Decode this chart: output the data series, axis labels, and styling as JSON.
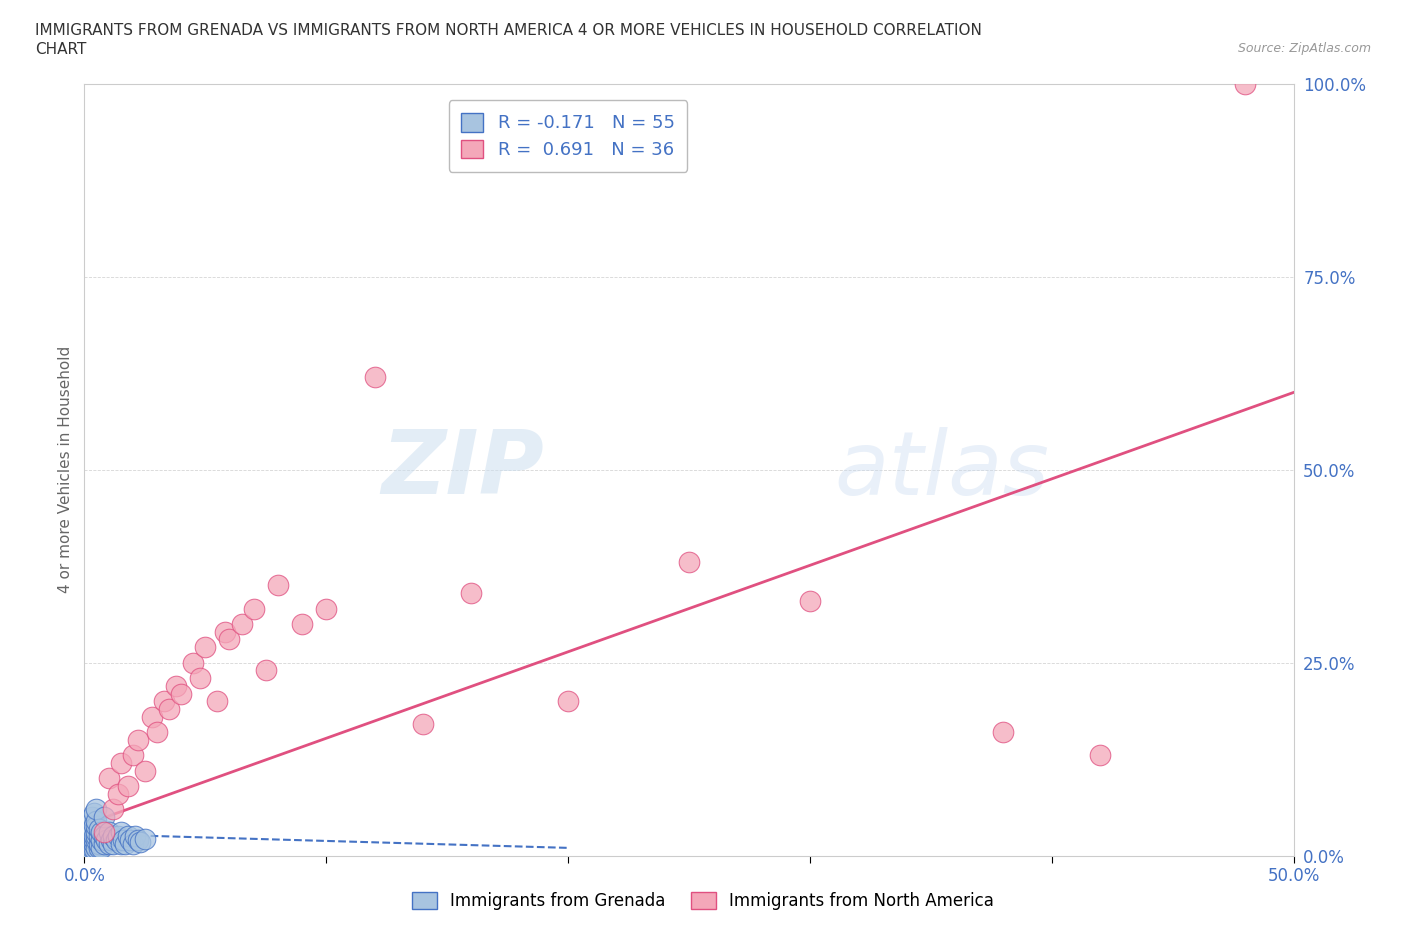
{
  "title_line1": "IMMIGRANTS FROM GRENADA VS IMMIGRANTS FROM NORTH AMERICA 4 OR MORE VEHICLES IN HOUSEHOLD CORRELATION",
  "title_line2": "CHART",
  "source": "Source: ZipAtlas.com",
  "ylabel": "4 or more Vehicles in Household",
  "xlim": [
    0.0,
    0.5
  ],
  "ylim": [
    0.0,
    1.0
  ],
  "xticks": [
    0.0,
    0.1,
    0.2,
    0.3,
    0.4,
    0.5
  ],
  "xticklabels": [
    "0.0%",
    "",
    "",
    "",
    "",
    "50.0%"
  ],
  "yticks": [
    0.0,
    0.25,
    0.5,
    0.75,
    1.0
  ],
  "yticklabels": [
    "0.0%",
    "25.0%",
    "50.0%",
    "75.0%",
    "100.0%"
  ],
  "blue_color": "#a8c4e0",
  "blue_edge_color": "#4472c4",
  "pink_color": "#f4a7b9",
  "pink_edge_color": "#e05080",
  "blue_R": -0.171,
  "blue_N": 55,
  "pink_R": 0.691,
  "pink_N": 36,
  "legend_label_blue": "Immigrants from Grenada",
  "legend_label_pink": "Immigrants from North America",
  "watermark_zip": "ZIP",
  "watermark_atlas": "atlas",
  "tick_color": "#4472c4",
  "grid_color": "#cccccc",
  "spine_color": "#cccccc",
  "blue_scatter_x": [
    0.001,
    0.001,
    0.002,
    0.002,
    0.002,
    0.002,
    0.003,
    0.003,
    0.003,
    0.003,
    0.003,
    0.003,
    0.003,
    0.004,
    0.004,
    0.004,
    0.004,
    0.004,
    0.004,
    0.005,
    0.005,
    0.005,
    0.005,
    0.005,
    0.005,
    0.005,
    0.006,
    0.006,
    0.006,
    0.006,
    0.007,
    0.007,
    0.007,
    0.008,
    0.008,
    0.008,
    0.009,
    0.01,
    0.01,
    0.011,
    0.012,
    0.012,
    0.013,
    0.014,
    0.015,
    0.015,
    0.016,
    0.017,
    0.018,
    0.019,
    0.02,
    0.021,
    0.022,
    0.023,
    0.025
  ],
  "blue_scatter_y": [
    0.01,
    0.03,
    0.005,
    0.015,
    0.02,
    0.04,
    0.01,
    0.015,
    0.02,
    0.025,
    0.03,
    0.035,
    0.05,
    0.008,
    0.015,
    0.02,
    0.025,
    0.04,
    0.055,
    0.01,
    0.02,
    0.025,
    0.03,
    0.038,
    0.045,
    0.06,
    0.01,
    0.015,
    0.025,
    0.035,
    0.01,
    0.02,
    0.03,
    0.015,
    0.025,
    0.05,
    0.02,
    0.015,
    0.03,
    0.02,
    0.015,
    0.025,
    0.02,
    0.025,
    0.015,
    0.03,
    0.02,
    0.015,
    0.025,
    0.02,
    0.015,
    0.025,
    0.02,
    0.018,
    0.022
  ],
  "pink_scatter_x": [
    0.008,
    0.01,
    0.012,
    0.014,
    0.015,
    0.018,
    0.02,
    0.022,
    0.025,
    0.028,
    0.03,
    0.033,
    0.035,
    0.038,
    0.04,
    0.045,
    0.048,
    0.05,
    0.055,
    0.058,
    0.06,
    0.065,
    0.07,
    0.075,
    0.08,
    0.09,
    0.1,
    0.12,
    0.14,
    0.16,
    0.2,
    0.25,
    0.3,
    0.38,
    0.42,
    0.48
  ],
  "pink_scatter_y": [
    0.03,
    0.1,
    0.06,
    0.08,
    0.12,
    0.09,
    0.13,
    0.15,
    0.11,
    0.18,
    0.16,
    0.2,
    0.19,
    0.22,
    0.21,
    0.25,
    0.23,
    0.27,
    0.2,
    0.29,
    0.28,
    0.3,
    0.32,
    0.24,
    0.35,
    0.3,
    0.32,
    0.62,
    0.17,
    0.34,
    0.2,
    0.38,
    0.33,
    0.16,
    0.13,
    1.0
  ],
  "pink_trend_x0": 0.0,
  "pink_trend_y0": 0.04,
  "pink_trend_x1": 0.5,
  "pink_trend_y1": 0.6,
  "blue_trend_x0": 0.0,
  "blue_trend_y0": 0.028,
  "blue_trend_x1": 0.2,
  "blue_trend_y1": 0.01
}
